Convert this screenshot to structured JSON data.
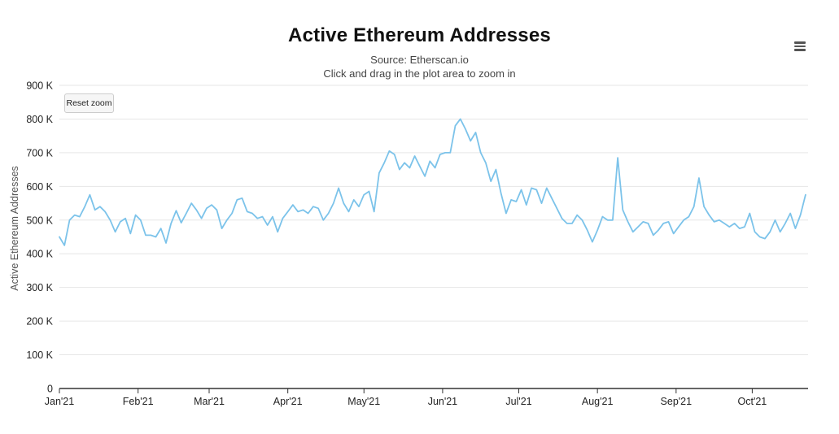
{
  "header": {
    "title": "Active Ethereum Addresses",
    "subtitle_source": "Source: Etherscan.io",
    "subtitle_hint": "Click and drag in the plot area to zoom in"
  },
  "controls": {
    "reset_zoom_label": "Reset zoom",
    "menu_icon": "hamburger-menu-icon"
  },
  "colors": {
    "line": "#7cc3ea",
    "grid": "#e6e6e6",
    "axis": "#333333"
  },
  "chart_data": {
    "type": "line",
    "title": "Active Ethereum Addresses",
    "subtitle": "Source: Etherscan.io",
    "xlabel": "",
    "ylabel": "Active Ethereum Addresses",
    "ylim": [
      0,
      900000
    ],
    "xlim": [
      "2021-01-01",
      "2021-10-23"
    ],
    "grid": true,
    "legend": "none",
    "y_ticks": [
      {
        "value": 0,
        "label": "0"
      },
      {
        "value": 100000,
        "label": "100 K"
      },
      {
        "value": 200000,
        "label": "200 K"
      },
      {
        "value": 300000,
        "label": "300 K"
      },
      {
        "value": 400000,
        "label": "400 K"
      },
      {
        "value": 500000,
        "label": "500 K"
      },
      {
        "value": 600000,
        "label": "600 K"
      },
      {
        "value": 700000,
        "label": "700 K"
      },
      {
        "value": 800000,
        "label": "800 K"
      },
      {
        "value": 900000,
        "label": "900 K"
      }
    ],
    "x_ticks": [
      {
        "date": "2021-01-01",
        "label": "Jan'21"
      },
      {
        "date": "2021-02-01",
        "label": "Feb'21"
      },
      {
        "date": "2021-03-01",
        "label": "Mar'21"
      },
      {
        "date": "2021-04-01",
        "label": "Apr'21"
      },
      {
        "date": "2021-05-01",
        "label": "May'21"
      },
      {
        "date": "2021-06-01",
        "label": "Jun'21"
      },
      {
        "date": "2021-07-01",
        "label": "Jul'21"
      },
      {
        "date": "2021-08-01",
        "label": "Aug'21"
      },
      {
        "date": "2021-09-01",
        "label": "Sep'21"
      },
      {
        "date": "2021-10-01",
        "label": "Oct'21"
      }
    ],
    "series": [
      {
        "values": [
          [
            "2021-01-01",
            450000
          ],
          [
            "2021-01-03",
            425000
          ],
          [
            "2021-01-05",
            500000
          ],
          [
            "2021-01-07",
            515000
          ],
          [
            "2021-01-09",
            510000
          ],
          [
            "2021-01-11",
            540000
          ],
          [
            "2021-01-13",
            575000
          ],
          [
            "2021-01-15",
            530000
          ],
          [
            "2021-01-17",
            540000
          ],
          [
            "2021-01-19",
            525000
          ],
          [
            "2021-01-21",
            500000
          ],
          [
            "2021-01-23",
            465000
          ],
          [
            "2021-01-25",
            495000
          ],
          [
            "2021-01-27",
            505000
          ],
          [
            "2021-01-29",
            460000
          ],
          [
            "2021-01-31",
            515000
          ],
          [
            "2021-02-02",
            500000
          ],
          [
            "2021-02-04",
            455000
          ],
          [
            "2021-02-06",
            455000
          ],
          [
            "2021-02-08",
            450000
          ],
          [
            "2021-02-10",
            475000
          ],
          [
            "2021-02-12",
            432000
          ],
          [
            "2021-02-14",
            490000
          ],
          [
            "2021-02-16",
            528000
          ],
          [
            "2021-02-18",
            492000
          ],
          [
            "2021-02-20",
            520000
          ],
          [
            "2021-02-22",
            550000
          ],
          [
            "2021-02-24",
            530000
          ],
          [
            "2021-02-26",
            505000
          ],
          [
            "2021-02-28",
            535000
          ],
          [
            "2021-03-02",
            545000
          ],
          [
            "2021-03-04",
            530000
          ],
          [
            "2021-03-06",
            475000
          ],
          [
            "2021-03-08",
            500000
          ],
          [
            "2021-03-10",
            520000
          ],
          [
            "2021-03-12",
            560000
          ],
          [
            "2021-03-14",
            565000
          ],
          [
            "2021-03-16",
            525000
          ],
          [
            "2021-03-18",
            520000
          ],
          [
            "2021-03-20",
            505000
          ],
          [
            "2021-03-22",
            510000
          ],
          [
            "2021-03-24",
            485000
          ],
          [
            "2021-03-26",
            510000
          ],
          [
            "2021-03-28",
            465000
          ],
          [
            "2021-03-30",
            505000
          ],
          [
            "2021-04-01",
            525000
          ],
          [
            "2021-04-03",
            545000
          ],
          [
            "2021-04-05",
            525000
          ],
          [
            "2021-04-07",
            530000
          ],
          [
            "2021-04-09",
            520000
          ],
          [
            "2021-04-11",
            540000
          ],
          [
            "2021-04-13",
            535000
          ],
          [
            "2021-04-15",
            500000
          ],
          [
            "2021-04-17",
            520000
          ],
          [
            "2021-04-19",
            550000
          ],
          [
            "2021-04-21",
            595000
          ],
          [
            "2021-04-23",
            550000
          ],
          [
            "2021-04-25",
            525000
          ],
          [
            "2021-04-27",
            560000
          ],
          [
            "2021-04-29",
            540000
          ],
          [
            "2021-05-01",
            575000
          ],
          [
            "2021-05-03",
            585000
          ],
          [
            "2021-05-05",
            525000
          ],
          [
            "2021-05-07",
            640000
          ],
          [
            "2021-05-09",
            670000
          ],
          [
            "2021-05-11",
            705000
          ],
          [
            "2021-05-13",
            695000
          ],
          [
            "2021-05-15",
            650000
          ],
          [
            "2021-05-17",
            670000
          ],
          [
            "2021-05-19",
            655000
          ],
          [
            "2021-05-21",
            690000
          ],
          [
            "2021-05-23",
            660000
          ],
          [
            "2021-05-25",
            630000
          ],
          [
            "2021-05-27",
            675000
          ],
          [
            "2021-05-29",
            655000
          ],
          [
            "2021-05-31",
            695000
          ],
          [
            "2021-06-02",
            700000
          ],
          [
            "2021-06-04",
            700000
          ],
          [
            "2021-06-06",
            780000
          ],
          [
            "2021-06-08",
            800000
          ],
          [
            "2021-06-10",
            770000
          ],
          [
            "2021-06-12",
            735000
          ],
          [
            "2021-06-14",
            760000
          ],
          [
            "2021-06-16",
            700000
          ],
          [
            "2021-06-18",
            670000
          ],
          [
            "2021-06-20",
            615000
          ],
          [
            "2021-06-22",
            650000
          ],
          [
            "2021-06-24",
            580000
          ],
          [
            "2021-06-26",
            520000
          ],
          [
            "2021-06-28",
            560000
          ],
          [
            "2021-06-30",
            555000
          ],
          [
            "2021-07-02",
            590000
          ],
          [
            "2021-07-04",
            545000
          ],
          [
            "2021-07-06",
            595000
          ],
          [
            "2021-07-08",
            590000
          ],
          [
            "2021-07-10",
            550000
          ],
          [
            "2021-07-12",
            595000
          ],
          [
            "2021-07-14",
            565000
          ],
          [
            "2021-07-16",
            535000
          ],
          [
            "2021-07-18",
            505000
          ],
          [
            "2021-07-20",
            490000
          ],
          [
            "2021-07-22",
            490000
          ],
          [
            "2021-07-24",
            515000
          ],
          [
            "2021-07-26",
            500000
          ],
          [
            "2021-07-28",
            470000
          ],
          [
            "2021-07-30",
            435000
          ],
          [
            "2021-08-01",
            470000
          ],
          [
            "2021-08-03",
            510000
          ],
          [
            "2021-08-05",
            500000
          ],
          [
            "2021-08-07",
            500000
          ],
          [
            "2021-08-09",
            685000
          ],
          [
            "2021-08-11",
            530000
          ],
          [
            "2021-08-13",
            495000
          ],
          [
            "2021-08-15",
            465000
          ],
          [
            "2021-08-17",
            480000
          ],
          [
            "2021-08-19",
            495000
          ],
          [
            "2021-08-21",
            490000
          ],
          [
            "2021-08-23",
            455000
          ],
          [
            "2021-08-25",
            470000
          ],
          [
            "2021-08-27",
            490000
          ],
          [
            "2021-08-29",
            495000
          ],
          [
            "2021-08-31",
            460000
          ],
          [
            "2021-09-02",
            480000
          ],
          [
            "2021-09-04",
            500000
          ],
          [
            "2021-09-06",
            510000
          ],
          [
            "2021-09-08",
            540000
          ],
          [
            "2021-09-10",
            625000
          ],
          [
            "2021-09-12",
            540000
          ],
          [
            "2021-09-14",
            515000
          ],
          [
            "2021-09-16",
            495000
          ],
          [
            "2021-09-18",
            500000
          ],
          [
            "2021-09-20",
            490000
          ],
          [
            "2021-09-22",
            480000
          ],
          [
            "2021-09-24",
            490000
          ],
          [
            "2021-09-26",
            475000
          ],
          [
            "2021-09-28",
            480000
          ],
          [
            "2021-09-30",
            520000
          ],
          [
            "2021-10-02",
            465000
          ],
          [
            "2021-10-04",
            450000
          ],
          [
            "2021-10-06",
            445000
          ],
          [
            "2021-10-08",
            465000
          ],
          [
            "2021-10-10",
            500000
          ],
          [
            "2021-10-12",
            465000
          ],
          [
            "2021-10-14",
            490000
          ],
          [
            "2021-10-16",
            520000
          ],
          [
            "2021-10-18",
            475000
          ],
          [
            "2021-10-20",
            515000
          ],
          [
            "2021-10-22",
            575000
          ]
        ]
      }
    ]
  }
}
